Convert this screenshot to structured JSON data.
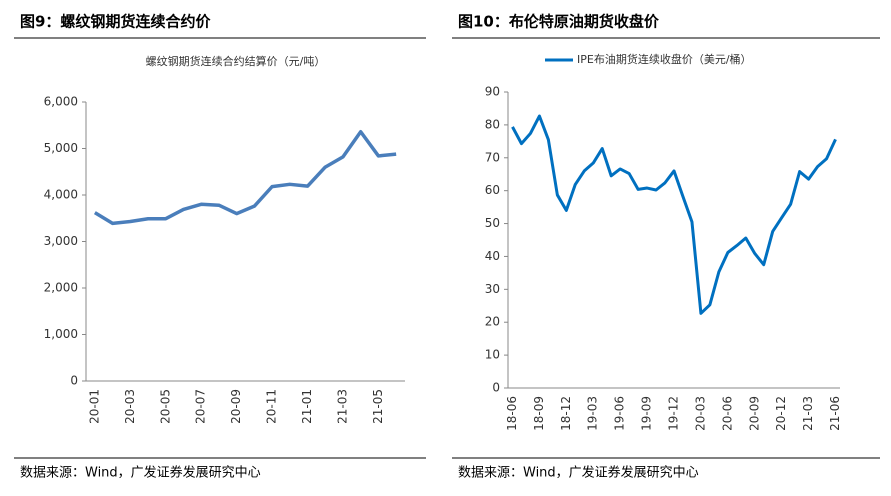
{
  "chart_data": [
    {
      "type": "line",
      "title": "图9：螺纹钢期货连续合约价",
      "subtitle": "螺纹钢期货连续合约结算价（元/吨）",
      "categories": [
        "20-01",
        null,
        "20-03",
        null,
        "20-05",
        null,
        "20-07",
        null,
        "20-09",
        null,
        "20-11",
        null,
        "21-01",
        null,
        "21-03",
        null,
        "21-05",
        null
      ],
      "values": [
        3620,
        3390,
        3430,
        3490,
        3490,
        3690,
        3800,
        3780,
        3600,
        3760,
        4180,
        4230,
        4190,
        4600,
        4820,
        5360,
        4840,
        4880
      ],
      "color": "#4a7ebb",
      "ylim": [
        0,
        6000
      ],
      "yticks": [
        0,
        {
          "value": 1000,
          "label": "1,000"
        },
        {
          "value": 2000,
          "label": "2,000"
        },
        {
          "value": 3000,
          "label": "3,000"
        },
        {
          "value": 4000,
          "label": "4,000"
        },
        {
          "value": 5000,
          "label": "5,000"
        },
        {
          "value": 6000,
          "label": "6,000"
        }
      ],
      "grid": false,
      "source": "数据来源：Wind，广发证券发展研究中心"
    },
    {
      "type": "line",
      "title": "图10：布伦特原油期货收盘价",
      "categories": [
        "18-06",
        null,
        null,
        "18-09",
        null,
        null,
        "18-12",
        null,
        null,
        "19-03",
        null,
        null,
        "19-06",
        null,
        null,
        "19-09",
        null,
        null,
        "19-12",
        null,
        null,
        "20-03",
        null,
        null,
        "20-06",
        null,
        null,
        "20-09",
        null,
        null,
        "20-12",
        null,
        null,
        "21-03",
        null,
        null,
        "21-06"
      ],
      "series": [
        {
          "name": "IPE布油期货连续收盘价（美元/桶）",
          "color": "#0070c0",
          "values": [
            79.4,
            74.3,
            77.4,
            82.7,
            75.5,
            58.7,
            54.0,
            61.9,
            66.0,
            68.4,
            72.8,
            64.5,
            66.6,
            65.2,
            60.4,
            60.8,
            60.2,
            62.4,
            66.0,
            58.2,
            50.5,
            22.7,
            25.3,
            35.3,
            41.2,
            43.3,
            45.6,
            40.9,
            37.5,
            47.6,
            51.8,
            55.9,
            65.8,
            63.5,
            67.3,
            69.7,
            75.6
          ]
        }
      ],
      "legend": "top",
      "ylim": [
        0,
        90
      ],
      "yticks": [
        0,
        10,
        20,
        30,
        40,
        50,
        60,
        70,
        80,
        90
      ],
      "grid": false,
      "source": "数据来源：Wind，广发证券发展研究中心"
    }
  ]
}
